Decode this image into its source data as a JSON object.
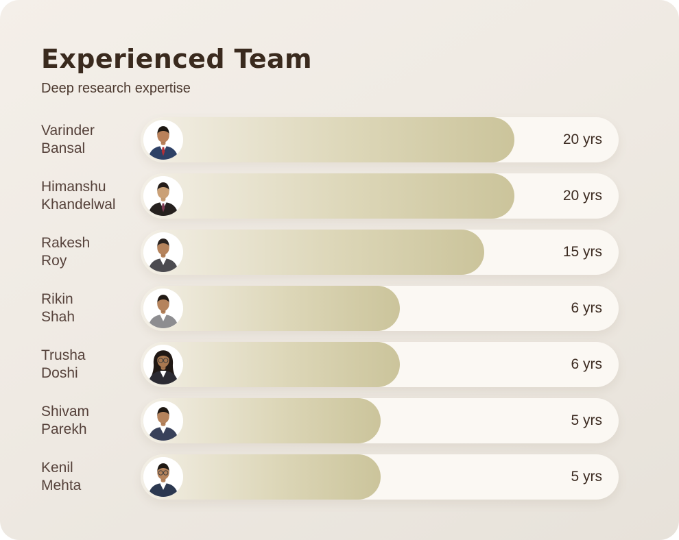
{
  "card": {
    "title": "Experienced Team",
    "subtitle": "Deep research expertise"
  },
  "unit_suffix": "yrs",
  "rows": [
    {
      "name_line1": "Varinder",
      "name_line2": "Bansal",
      "years": 20,
      "value_label": "20 yrs",
      "bar_percent": 78.2,
      "avatar": {
        "icon": "person-portrait-icon",
        "skin": "#b9815a",
        "hair": "#1d1712",
        "suit": "#2e4166",
        "shirt": "#ffffff",
        "tie": "#b23038",
        "glasses": false,
        "long_hair": false
      }
    },
    {
      "name_line1": "Himanshu",
      "name_line2": "Khandelwal",
      "years": 20,
      "value_label": "20 yrs",
      "bar_percent": 78.2,
      "avatar": {
        "icon": "person-portrait-icon",
        "skin": "#caa076",
        "hair": "#241c18",
        "suit": "#26211f",
        "shirt": "#ffffff",
        "tie": "#7d3a52",
        "glasses": false,
        "long_hair": false
      }
    },
    {
      "name_line1": "Rakesh",
      "name_line2": "Roy",
      "years": 15,
      "value_label": "15 yrs",
      "bar_percent": 71.9,
      "avatar": {
        "icon": "person-portrait-icon",
        "skin": "#b5835c",
        "hair": "#2a2320",
        "suit": "#4c4b50",
        "shirt": "#ffffff",
        "tie": null,
        "glasses": false,
        "long_hair": false
      }
    },
    {
      "name_line1": "Rikin",
      "name_line2": "Shah",
      "years": 6,
      "value_label": "6 yrs",
      "bar_percent": 54.2,
      "avatar": {
        "icon": "person-portrait-icon",
        "skin": "#b5835c",
        "hair": "#221a15",
        "suit": "#8d8d90",
        "shirt": "#ffffff",
        "tie": null,
        "glasses": false,
        "long_hair": false
      }
    },
    {
      "name_line1": "Trusha",
      "name_line2": "Doshi",
      "years": 6,
      "value_label": "6 yrs",
      "bar_percent": 54.2,
      "avatar": {
        "icon": "person-portrait-icon",
        "skin": "#a97850",
        "hair": "#201814",
        "suit": "#2c2b33",
        "shirt": "#ffffff",
        "tie": null,
        "glasses": true,
        "long_hair": true
      }
    },
    {
      "name_line1": "Shivam",
      "name_line2": "Parekh",
      "years": 5,
      "value_label": "5 yrs",
      "bar_percent": 50.2,
      "avatar": {
        "icon": "person-portrait-icon",
        "skin": "#b5835c",
        "hair": "#1f1813",
        "suit": "#39415a",
        "shirt": "#ffffff",
        "tie": null,
        "glasses": false,
        "long_hair": false
      }
    },
    {
      "name_line1": "Kenil",
      "name_line2": "Mehta",
      "years": 5,
      "value_label": "5 yrs",
      "bar_percent": 50.2,
      "avatar": {
        "icon": "person-portrait-icon",
        "skin": "#b5835c",
        "hair": "#1f1813",
        "suit": "#2c3850",
        "shirt": "#ffffff",
        "tie": null,
        "glasses": true,
        "long_hair": false
      }
    }
  ],
  "colors": {
    "card_bg_start": "#f4efe9",
    "card_bg_mid": "#efeae3",
    "card_bg_end": "#e7e2da",
    "track": "#fbf8f3",
    "bar_start": "#f3efe6",
    "bar_mid": "#dcd6b7",
    "bar_end": "#cbc49b",
    "title_text": "#3a2a1e",
    "subtitle_text": "#4b382e",
    "name_text": "#55413a",
    "value_text": "#3b2a20"
  },
  "chart_data": {
    "type": "bar",
    "orientation": "horizontal",
    "title": "Experienced Team",
    "subtitle": "Deep research expertise",
    "categories": [
      "Varinder Bansal",
      "Himanshu Khandelwal",
      "Rakesh Roy",
      "Rikin Shah",
      "Trusha Doshi",
      "Shivam Parekh",
      "Kenil Mehta"
    ],
    "values": [
      20,
      20,
      15,
      6,
      6,
      5,
      5
    ],
    "value_labels": [
      "20 yrs",
      "20 yrs",
      "15 yrs",
      "6 yrs",
      "6 yrs",
      "5 yrs",
      "5 yrs"
    ],
    "unit": "years of experience",
    "xlabel": "",
    "ylabel": "",
    "grid": false,
    "legend": false,
    "bar_scale_note": "bar lengths drawn on compressed (non-linear) scale",
    "bar_color_gradient": [
      "#f3efe6",
      "#cbc49b"
    ]
  }
}
